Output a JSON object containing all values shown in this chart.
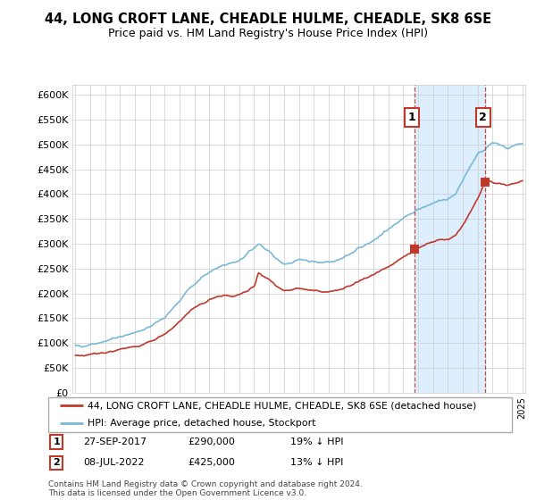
{
  "title": "44, LONG CROFT LANE, CHEADLE HULME, CHEADLE, SK8 6SE",
  "subtitle": "Price paid vs. HM Land Registry's House Price Index (HPI)",
  "ylim": [
    0,
    620000
  ],
  "yticks": [
    0,
    50000,
    100000,
    150000,
    200000,
    250000,
    300000,
    350000,
    400000,
    450000,
    500000,
    550000,
    600000
  ],
  "ytick_labels": [
    "£0",
    "£50K",
    "£100K",
    "£150K",
    "£200K",
    "£250K",
    "£300K",
    "£350K",
    "£400K",
    "£450K",
    "£500K",
    "£550K",
    "£600K"
  ],
  "hpi_color": "#7ab8d9",
  "price_color": "#c0392b",
  "vline_color": "#c0392b",
  "shade_color": "#ddeeff",
  "grid_color": "#cccccc",
  "bg_color": "#ffffff",
  "legend_label_price": "44, LONG CROFT LANE, CHEADLE HULME, CHEADLE, SK8 6SE (detached house)",
  "legend_label_hpi": "HPI: Average price, detached house, Stockport",
  "transaction1_date": "27-SEP-2017",
  "transaction1_price": "£290,000",
  "transaction1_vs_hpi": "19% ↓ HPI",
  "transaction2_date": "08-JUL-2022",
  "transaction2_price": "£425,000",
  "transaction2_vs_hpi": "13% ↓ HPI",
  "footer": "Contains HM Land Registry data © Crown copyright and database right 2024.\nThis data is licensed under the Open Government Licence v3.0.",
  "t1_x": 2017.74,
  "t1_y": 290000,
  "t2_x": 2022.52,
  "t2_y": 425000,
  "xmin": 1995,
  "xmax": 2025
}
